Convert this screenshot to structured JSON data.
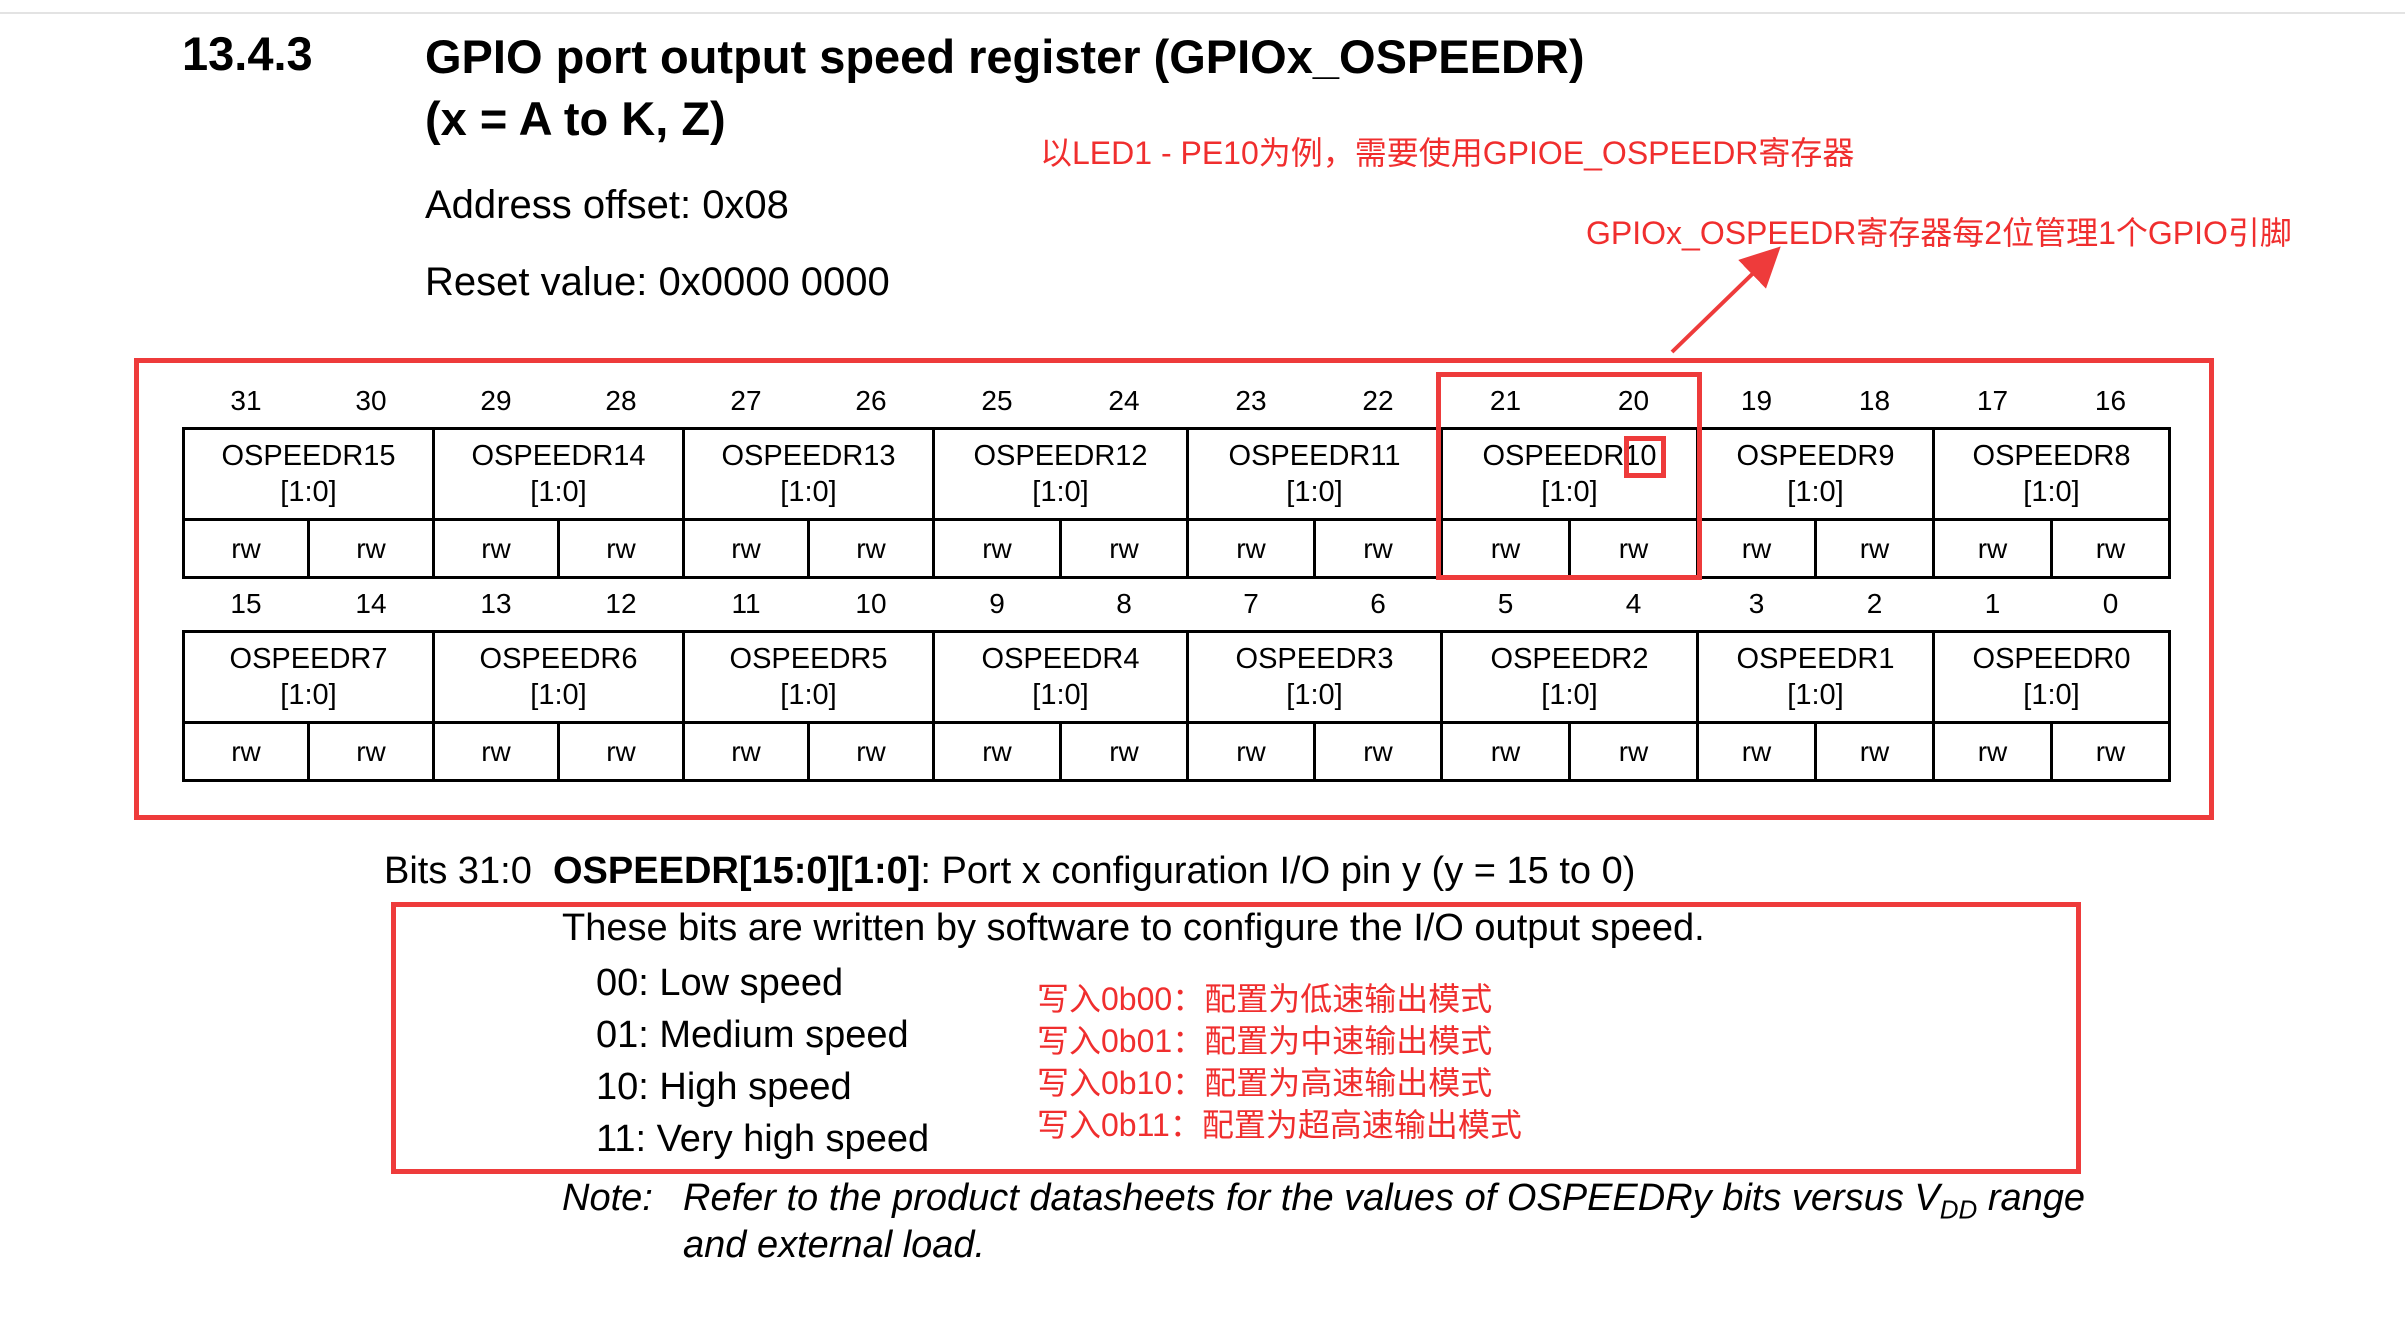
{
  "section": {
    "number": "13.4.3",
    "title_line1": "GPIO port output speed register (GPIOx_OSPEEDR)",
    "title_line2": "(x = A to K, Z)",
    "address_offset": "Address offset: 0x08",
    "reset_value": "Reset value: 0x0000 0000"
  },
  "annotations": {
    "led_example": "以LED1 - PE10为例，需要使用GPIOE_OSPEEDR寄存器",
    "two_bits": "GPIOx_OSPEEDR寄存器每2位管理1个GPIO引脚",
    "w00": "写入0b00：配置为低速输出模式",
    "w01": "写入0b01：配置为中速输出模式",
    "w10": "写入0b10：配置为高速输出模式",
    "w11": "写入0b11：配置为超高速输出模式"
  },
  "colors": {
    "annotation_red": "#f02e2e",
    "box_red": "#ee3b3b"
  },
  "register": {
    "upper_bits": [
      "31",
      "30",
      "29",
      "28",
      "27",
      "26",
      "25",
      "24",
      "23",
      "22",
      "21",
      "20",
      "19",
      "18",
      "17",
      "16"
    ],
    "upper_fields": [
      "OSPEEDR15",
      "OSPEEDR14",
      "OSPEEDR13",
      "OSPEEDR12",
      "OSPEEDR11",
      "OSPEEDR10",
      "OSPEEDR9",
      "OSPEEDR8"
    ],
    "lower_bits": [
      "15",
      "14",
      "13",
      "12",
      "11",
      "10",
      "9",
      "8",
      "7",
      "6",
      "5",
      "4",
      "3",
      "2",
      "1",
      "0"
    ],
    "lower_fields": [
      "OSPEEDR7",
      "OSPEEDR6",
      "OSPEEDR5",
      "OSPEEDR4",
      "OSPEEDR3",
      "OSPEEDR2",
      "OSPEEDR1",
      "OSPEEDR0"
    ],
    "field_range": "[1:0]",
    "access": "rw"
  },
  "description": {
    "bits_label": "Bits 31:0",
    "field_name": "OSPEEDR[15:0][1:0]",
    "field_desc": ": Port x configuration I/O pin y (y = 15 to 0)",
    "intro": "These bits are written by software to configure the I/O output speed.",
    "opt00": "00: Low speed",
    "opt01": "01: Medium speed",
    "opt10": "10: High speed",
    "opt11": "11: Very high speed",
    "note_label": "Note:",
    "note_text_a": "Refer to the product datasheets for the values of OSPEEDRy bits versus V",
    "note_sub": "DD",
    "note_text_b": " range",
    "note_line2": "and external load."
  }
}
